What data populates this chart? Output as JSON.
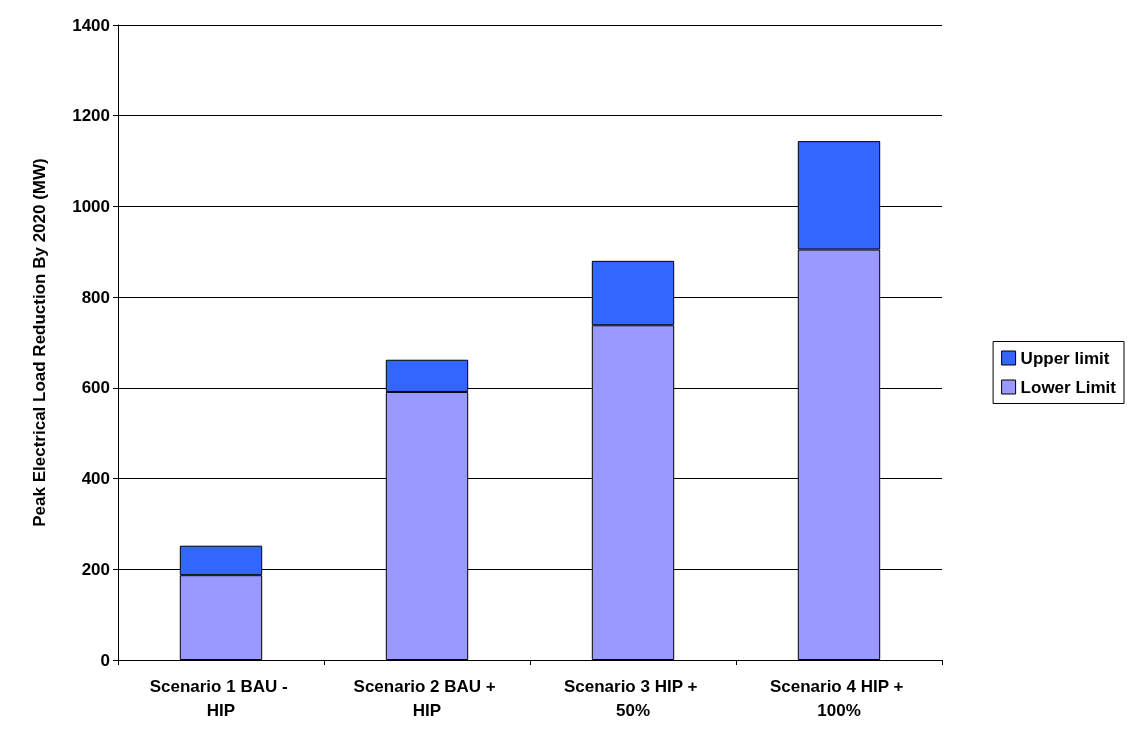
{
  "chart_data": {
    "type": "bar",
    "ylabel": "Peak Electrical Load Reduction By 2020 (MW)",
    "categories": [
      "Scenario 1 BAU - HIP",
      "Scenario 2 BAU + HIP",
      "Scenario 3 HIP + 50%",
      "Scenario 4 HIP + 100%"
    ],
    "stacked": true,
    "series": [
      {
        "name": "Lower Limit",
        "color": "#9999ff",
        "values": [
          187,
          591,
          738,
          905
        ]
      },
      {
        "name": "Upper limit",
        "color": "#3366ff",
        "values": [
          65,
          71,
          142,
          239
        ]
      }
    ],
    "ylim": [
      0,
      1400
    ],
    "yticks": [
      0,
      200,
      400,
      600,
      800,
      1000,
      1200,
      1400
    ],
    "grid": "y",
    "legend": "right"
  }
}
